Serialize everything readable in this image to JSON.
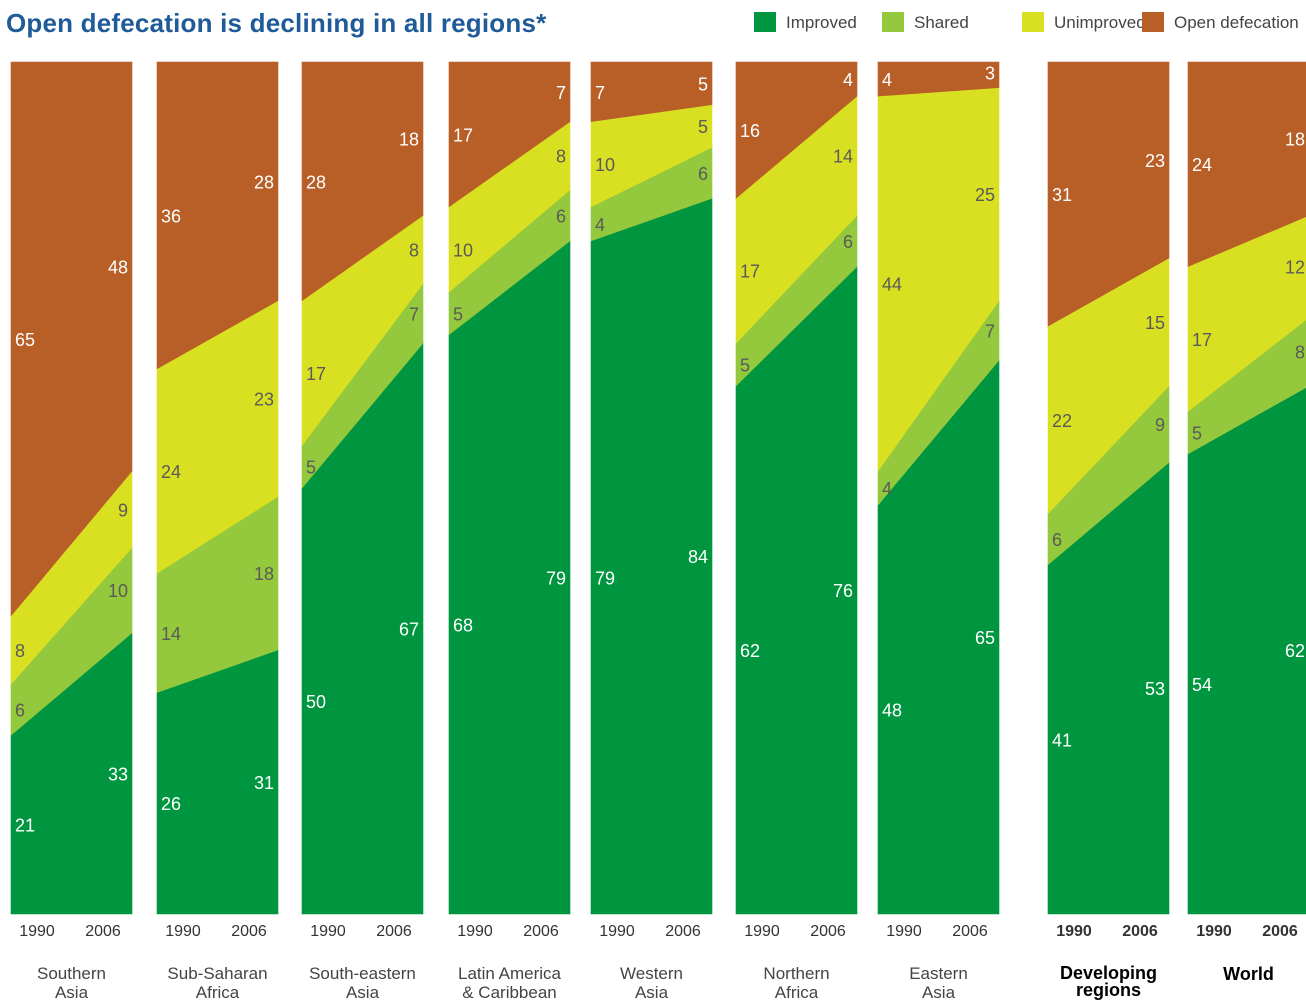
{
  "chart_data": {
    "type": "area",
    "title": "Open defecation is declining in all regions*",
    "categories": [
      "1990",
      "2006"
    ],
    "legend": [
      {
        "name": "Improved",
        "color": "#009640"
      },
      {
        "name": "Shared",
        "color": "#95c93d"
      },
      {
        "name": "Unimproved",
        "color": "#d9e021"
      },
      {
        "name": "Open defecation",
        "color": "#b85e27"
      }
    ],
    "label_color": "#ffffff",
    "label_color_light": "#5a5a5a",
    "ylim": [
      0,
      100
    ],
    "panels": [
      {
        "region": [
          "Southern",
          "Asia"
        ],
        "bold": false,
        "values": {
          "Improved": [
            21,
            33
          ],
          "Shared": [
            6,
            10
          ],
          "Unimproved": [
            8,
            9
          ],
          "Open defecation": [
            65,
            48
          ]
        }
      },
      {
        "region": [
          "Sub-Saharan",
          "Africa"
        ],
        "bold": false,
        "values": {
          "Improved": [
            26,
            31
          ],
          "Shared": [
            14,
            18
          ],
          "Unimproved": [
            24,
            23
          ],
          "Open defecation": [
            36,
            28
          ]
        }
      },
      {
        "region": [
          "South-eastern",
          "Asia"
        ],
        "bold": false,
        "values": {
          "Improved": [
            50,
            67
          ],
          "Shared": [
            5,
            7
          ],
          "Unimproved": [
            17,
            8
          ],
          "Open defecation": [
            28,
            18
          ]
        }
      },
      {
        "region": [
          "Latin America",
          "& Caribbean"
        ],
        "bold": false,
        "values": {
          "Improved": [
            68,
            79
          ],
          "Shared": [
            5,
            6
          ],
          "Unimproved": [
            10,
            8
          ],
          "Open defecation": [
            17,
            7
          ]
        }
      },
      {
        "region": [
          "Western",
          "Asia"
        ],
        "bold": false,
        "values": {
          "Improved": [
            79,
            84
          ],
          "Shared": [
            4,
            6
          ],
          "Unimproved": [
            10,
            5
          ],
          "Open defecation": [
            7,
            5
          ]
        }
      },
      {
        "region": [
          "Northern",
          "Africa"
        ],
        "bold": false,
        "values": {
          "Improved": [
            62,
            76
          ],
          "Shared": [
            5,
            6
          ],
          "Unimproved": [
            17,
            14
          ],
          "Open defecation": [
            16,
            4
          ]
        }
      },
      {
        "region": [
          "Eastern",
          "Asia"
        ],
        "bold": false,
        "values": {
          "Improved": [
            48,
            65
          ],
          "Shared": [
            4,
            7
          ],
          "Unimproved": [
            44,
            25
          ],
          "Open defecation": [
            4,
            3
          ]
        }
      },
      {
        "region": [
          "Developing",
          "regions"
        ],
        "bold": true,
        "values": {
          "Improved": [
            41,
            53
          ],
          "Shared": [
            6,
            9
          ],
          "Unimproved": [
            22,
            15
          ],
          "Open defecation": [
            31,
            23
          ]
        }
      },
      {
        "region": [
          "World"
        ],
        "bold": true,
        "values": {
          "Improved": [
            54,
            62
          ],
          "Shared": [
            5,
            8
          ],
          "Unimproved": [
            17,
            12
          ],
          "Open defecation": [
            24,
            18
          ]
        }
      }
    ]
  }
}
